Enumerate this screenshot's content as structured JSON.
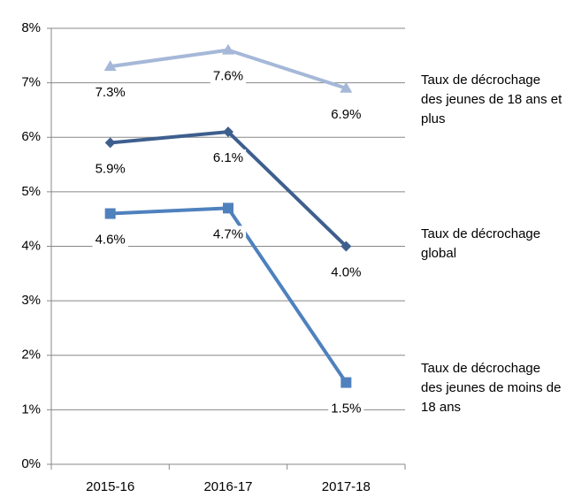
{
  "chart_data": {
    "type": "line",
    "categories": [
      "2015-16",
      "2016-17",
      "2017-18"
    ],
    "series": [
      {
        "name": "Taux de décrochage des jeunes de 18 ans et plus",
        "color": "#a5b8d8",
        "marker": "triangle",
        "values": [
          7.3,
          7.6,
          6.9
        ],
        "value_labels": [
          "7.3%",
          "7.6%",
          "6.9%"
        ]
      },
      {
        "name": "Taux de décrochage global",
        "color": "#3e5f8e",
        "marker": "diamond",
        "values": [
          5.9,
          6.1,
          4.0
        ],
        "value_labels": [
          "5.9%",
          "6.1%",
          "4.0%"
        ]
      },
      {
        "name": "Taux de décrochage des jeunes de moins de 18 ans",
        "color": "#4f81bd",
        "marker": "square",
        "values": [
          4.6,
          4.7,
          1.5
        ],
        "value_labels": [
          "4.6%",
          "4.7%",
          "1.5%"
        ]
      }
    ],
    "ylim": [
      0,
      8
    ],
    "yticks": [
      {
        "value": 0,
        "label": "0%"
      },
      {
        "value": 1,
        "label": "1%"
      },
      {
        "value": 2,
        "label": "2%"
      },
      {
        "value": 3,
        "label": "3%"
      },
      {
        "value": 4,
        "label": "4%"
      },
      {
        "value": 5,
        "label": "5%"
      },
      {
        "value": 6,
        "label": "6%"
      },
      {
        "value": 7,
        "label": "7%"
      },
      {
        "value": 8,
        "label": "8%"
      }
    ],
    "grid": true
  }
}
